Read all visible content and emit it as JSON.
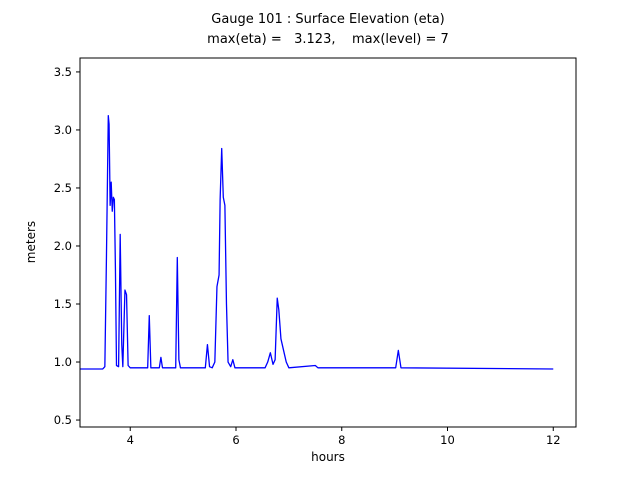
{
  "title": "Gauge 101 : Surface Elevation (eta)",
  "subtitle": "max(eta) =   3.123,    max(level) = 7",
  "chart_data": {
    "type": "line",
    "title": "Gauge 101 : Surface Elevation (eta)",
    "subtitle": "max(eta) =   3.123,    max(level) = 7",
    "xlabel": "hours",
    "ylabel": "meters",
    "xlim": [
      3.05,
      12.43
    ],
    "ylim": [
      0.44,
      3.62
    ],
    "xticks": [
      4,
      6,
      8,
      10,
      12
    ],
    "xtick_labels": [
      "4",
      "6",
      "8",
      "10",
      "12"
    ],
    "yticks": [
      0.5,
      1.0,
      1.5,
      2.0,
      2.5,
      3.0,
      3.5
    ],
    "ytick_labels": [
      "0.5",
      "1.0",
      "1.5",
      "2.0",
      "2.5",
      "3.0",
      "3.5"
    ],
    "line_color": "#0000ff",
    "axis_color": "#000000",
    "grid": false,
    "legend_position": "none",
    "max_eta": 3.123,
    "max_level": 7,
    "series": [
      {
        "name": "eta",
        "points": [
          [
            3.05,
            0.94
          ],
          [
            3.48,
            0.94
          ],
          [
            3.52,
            0.96
          ],
          [
            3.55,
            1.9
          ],
          [
            3.57,
            2.6
          ],
          [
            3.585,
            3.123
          ],
          [
            3.6,
            3.05
          ],
          [
            3.62,
            2.35
          ],
          [
            3.64,
            2.55
          ],
          [
            3.66,
            2.3
          ],
          [
            3.68,
            2.42
          ],
          [
            3.7,
            2.4
          ],
          [
            3.72,
            1.8
          ],
          [
            3.74,
            0.97
          ],
          [
            3.78,
            0.96
          ],
          [
            3.81,
            2.1
          ],
          [
            3.84,
            1.15
          ],
          [
            3.86,
            0.96
          ],
          [
            3.9,
            1.62
          ],
          [
            3.93,
            1.58
          ],
          [
            3.96,
            0.97
          ],
          [
            4.0,
            0.95
          ],
          [
            4.33,
            0.95
          ],
          [
            4.36,
            1.4
          ],
          [
            4.39,
            0.95
          ],
          [
            4.55,
            0.95
          ],
          [
            4.58,
            1.04
          ],
          [
            4.61,
            0.95
          ],
          [
            4.86,
            0.95
          ],
          [
            4.89,
            1.9
          ],
          [
            4.92,
            1.02
          ],
          [
            4.95,
            0.95
          ],
          [
            5.42,
            0.95
          ],
          [
            5.46,
            1.15
          ],
          [
            5.5,
            0.96
          ],
          [
            5.55,
            0.95
          ],
          [
            5.6,
            1.0
          ],
          [
            5.64,
            1.65
          ],
          [
            5.68,
            1.75
          ],
          [
            5.7,
            2.4
          ],
          [
            5.73,
            2.84
          ],
          [
            5.76,
            2.42
          ],
          [
            5.79,
            2.35
          ],
          [
            5.82,
            1.5
          ],
          [
            5.85,
            1.0
          ],
          [
            5.9,
            0.96
          ],
          [
            5.94,
            1.02
          ],
          [
            5.98,
            0.95
          ],
          [
            6.55,
            0.95
          ],
          [
            6.6,
            1.0
          ],
          [
            6.65,
            1.08
          ],
          [
            6.7,
            0.98
          ],
          [
            6.74,
            1.02
          ],
          [
            6.78,
            1.55
          ],
          [
            6.81,
            1.45
          ],
          [
            6.85,
            1.2
          ],
          [
            6.9,
            1.1
          ],
          [
            6.95,
            1.0
          ],
          [
            7.0,
            0.95
          ],
          [
            7.5,
            0.97
          ],
          [
            7.55,
            0.95
          ],
          [
            9.02,
            0.95
          ],
          [
            9.07,
            1.1
          ],
          [
            9.12,
            0.95
          ],
          [
            12.0,
            0.94
          ]
        ]
      }
    ]
  }
}
